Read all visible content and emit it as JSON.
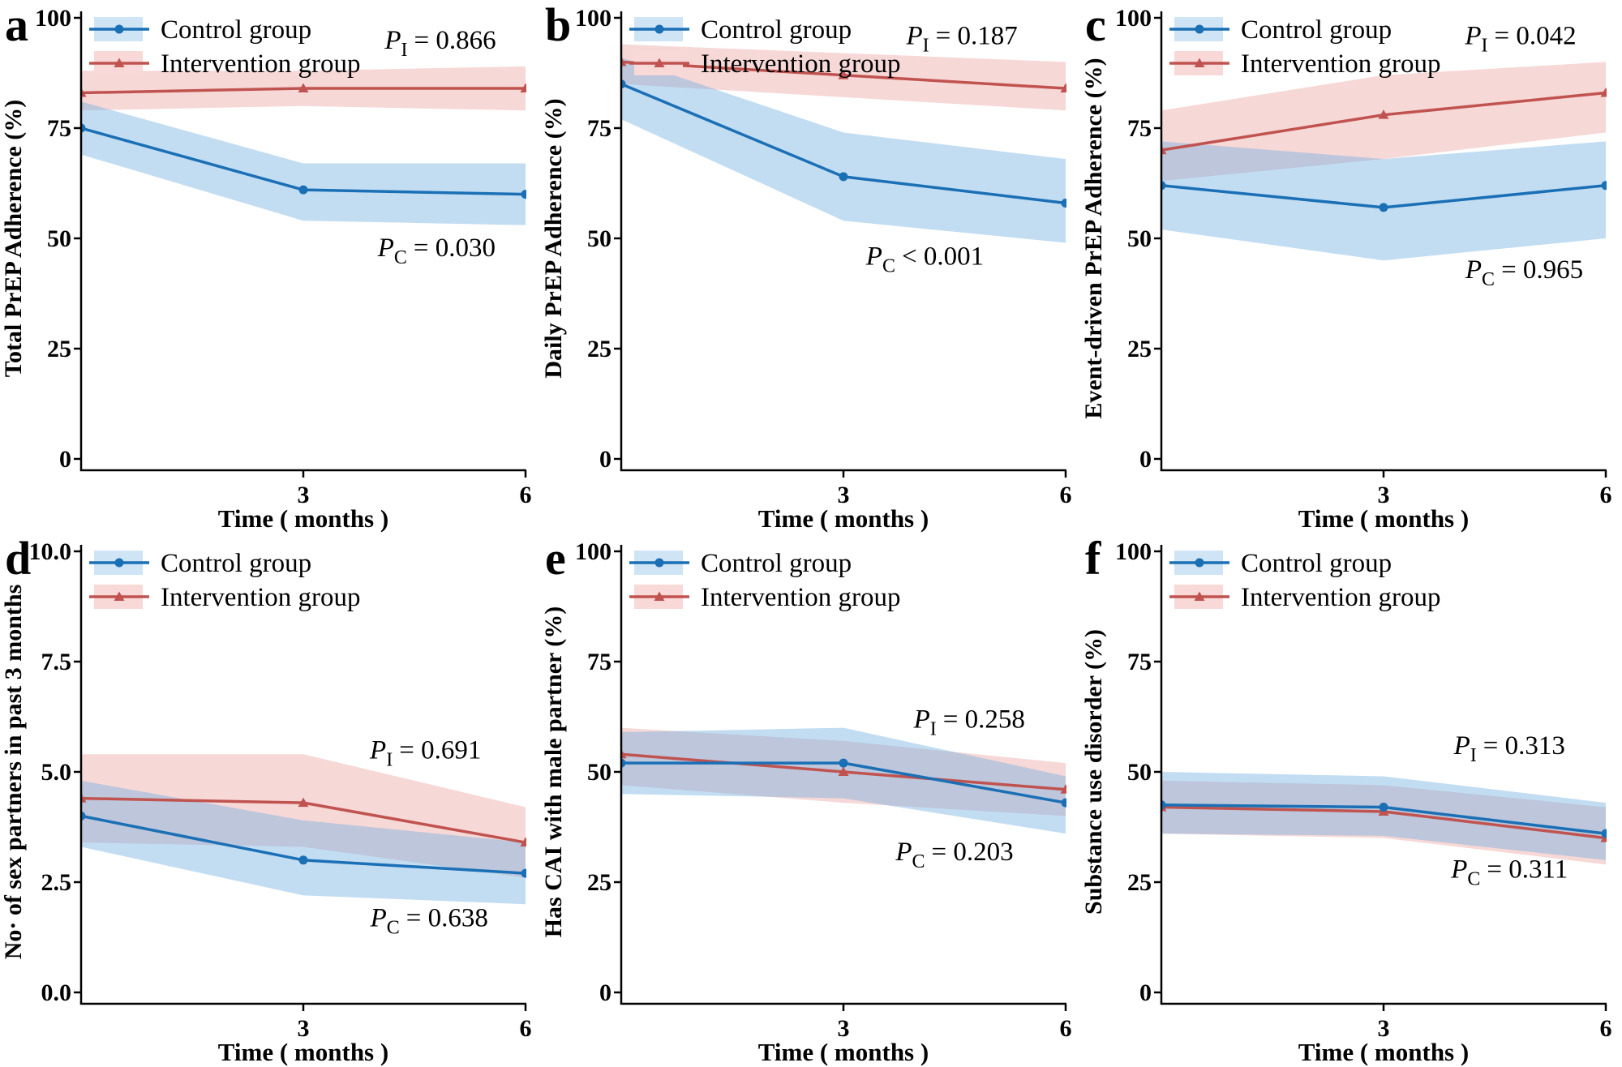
{
  "figure": {
    "x_axis_label": "Time ( months )",
    "legend_position": "top-left",
    "grid": false,
    "legend_items": [
      {
        "name": "Control group",
        "role": "control",
        "marker": "circle"
      },
      {
        "name": "Intervention group",
        "role": "intervention",
        "marker": "triangle"
      }
    ],
    "colors": {
      "control_line": "#1a6fb5",
      "control_fill": "#cfe4f5",
      "control_fill_alpha": "rgba(110,175,225,0.42)",
      "intervention_line": "#c0534f",
      "intervention_fill": "#f8d9d8",
      "intervention_fill_alpha": "rgba(228,140,138,0.34)",
      "axis": "#000000",
      "text": "#000000"
    }
  },
  "chart_data": [
    {
      "type": "line",
      "panel_label": "a",
      "ylabel": "Total PrEP Adherence (%)",
      "xlabel": "Time ( months )",
      "ylim": [
        0,
        100
      ],
      "yticks": [
        {
          "v": 0,
          "label": "0"
        },
        {
          "v": 25,
          "label": "25"
        },
        {
          "v": 50,
          "label": "50"
        },
        {
          "v": 75,
          "label": "75"
        },
        {
          "v": 100,
          "label": "100"
        }
      ],
      "x": [
        0,
        3,
        6
      ],
      "xticks": [
        {
          "v": 3,
          "label": "3"
        },
        {
          "v": 6,
          "label": "6"
        }
      ],
      "series": [
        {
          "name": "Control group",
          "role": "control",
          "values": [
            75,
            61,
            60
          ],
          "ci_low": [
            69,
            54,
            53
          ],
          "ci_high": [
            81,
            67,
            67
          ]
        },
        {
          "name": "Intervention group",
          "role": "intervention",
          "values": [
            83,
            84,
            84
          ],
          "ci_low": [
            79,
            80,
            79
          ],
          "ci_high": [
            88,
            88,
            89
          ]
        }
      ],
      "annotations": [
        {
          "p": "P",
          "sub": "I",
          "rest": "= 0.866",
          "x": 4.85,
          "y": 93
        },
        {
          "p": "P",
          "sub": "C",
          "rest": "= 0.030",
          "x": 4.8,
          "y": 46
        }
      ]
    },
    {
      "type": "line",
      "panel_label": "b",
      "ylabel": "Daily PrEP Adherence (%)",
      "xlabel": "Time ( months )",
      "ylim": [
        0,
        100
      ],
      "yticks": [
        {
          "v": 0,
          "label": "0"
        },
        {
          "v": 25,
          "label": "25"
        },
        {
          "v": 50,
          "label": "50"
        },
        {
          "v": 75,
          "label": "75"
        },
        {
          "v": 100,
          "label": "100"
        }
      ],
      "x": [
        0,
        3,
        6
      ],
      "xticks": [
        {
          "v": 3,
          "label": "3"
        },
        {
          "v": 6,
          "label": "6"
        }
      ],
      "series": [
        {
          "name": "Control group",
          "role": "control",
          "values": [
            85,
            64,
            58
          ],
          "ci_low": [
            77,
            54,
            49
          ],
          "ci_high": [
            91,
            74,
            68
          ]
        },
        {
          "name": "Intervention group",
          "role": "intervention",
          "values": [
            90,
            87,
            84
          ],
          "ci_low": [
            85,
            82,
            79
          ],
          "ci_high": [
            94,
            92,
            90
          ]
        }
      ],
      "annotations": [
        {
          "p": "P",
          "sub": "I",
          "rest": "= 0.187",
          "x": 4.6,
          "y": 94
        },
        {
          "p": "P",
          "sub": "C",
          "rest": "< 0.001",
          "x": 4.1,
          "y": 44
        }
      ]
    },
    {
      "type": "line",
      "panel_label": "c",
      "ylabel": "Event-driven PrEP Adherence (%)",
      "xlabel": "Time ( months )",
      "ylim": [
        0,
        100
      ],
      "yticks": [
        {
          "v": 0,
          "label": "0"
        },
        {
          "v": 25,
          "label": "25"
        },
        {
          "v": 50,
          "label": "50"
        },
        {
          "v": 75,
          "label": "75"
        },
        {
          "v": 100,
          "label": "100"
        }
      ],
      "x": [
        0,
        3,
        6
      ],
      "xticks": [
        {
          "v": 3,
          "label": "3"
        },
        {
          "v": 6,
          "label": "6"
        }
      ],
      "series": [
        {
          "name": "Control group",
          "role": "control",
          "values": [
            62,
            57,
            62
          ],
          "ci_low": [
            52,
            45,
            50
          ],
          "ci_high": [
            72,
            68,
            72
          ]
        },
        {
          "name": "Intervention group",
          "role": "intervention",
          "values": [
            70,
            78,
            83
          ],
          "ci_low": [
            63,
            68,
            74
          ],
          "ci_high": [
            79,
            87,
            90
          ]
        }
      ],
      "annotations": [
        {
          "p": "P",
          "sub": "I",
          "rest": "= 0.042",
          "x": 4.85,
          "y": 94
        },
        {
          "p": "P",
          "sub": "C",
          "rest": "= 0.965",
          "x": 4.9,
          "y": 41
        }
      ]
    },
    {
      "type": "line",
      "panel_label": "d",
      "ylabel": "No· of sex partners in past 3 months",
      "xlabel": "Time ( months )",
      "ylim": [
        0,
        10
      ],
      "yticks": [
        {
          "v": 0,
          "label": "0.0"
        },
        {
          "v": 2.5,
          "label": "2.5"
        },
        {
          "v": 5,
          "label": "5.0"
        },
        {
          "v": 7.5,
          "label": "7.5"
        },
        {
          "v": 10,
          "label": "10.0"
        }
      ],
      "x": [
        0,
        3,
        6
      ],
      "xticks": [
        {
          "v": 3,
          "label": "3"
        },
        {
          "v": 6,
          "label": "6"
        }
      ],
      "series": [
        {
          "name": "Control group",
          "role": "control",
          "values": [
            4.0,
            3.0,
            2.7
          ],
          "ci_low": [
            3.3,
            2.2,
            2.0
          ],
          "ci_high": [
            4.8,
            3.9,
            3.4
          ]
        },
        {
          "name": "Intervention group",
          "role": "intervention",
          "values": [
            4.4,
            4.3,
            3.4
          ],
          "ci_low": [
            3.4,
            3.3,
            2.6
          ],
          "ci_high": [
            5.4,
            5.4,
            4.2
          ]
        }
      ],
      "annotations": [
        {
          "p": "P",
          "sub": "I",
          "rest": "= 0.691",
          "x": 4.65,
          "y": 5.3
        },
        {
          "p": "P",
          "sub": "C",
          "rest": "= 0.638",
          "x": 4.7,
          "y": 1.5
        }
      ]
    },
    {
      "type": "line",
      "panel_label": "e",
      "ylabel": "Has CAI with male partner (%)",
      "xlabel": "Time ( months )",
      "ylim": [
        0,
        100
      ],
      "yticks": [
        {
          "v": 0,
          "label": "0"
        },
        {
          "v": 25,
          "label": "25"
        },
        {
          "v": 50,
          "label": "50"
        },
        {
          "v": 75,
          "label": "75"
        },
        {
          "v": 100,
          "label": "100"
        }
      ],
      "x": [
        0,
        3,
        6
      ],
      "xticks": [
        {
          "v": 3,
          "label": "3"
        },
        {
          "v": 6,
          "label": "6"
        }
      ],
      "series": [
        {
          "name": "Control group",
          "role": "control",
          "values": [
            52,
            52,
            43
          ],
          "ci_low": [
            45,
            44,
            36
          ],
          "ci_high": [
            59,
            60,
            49
          ]
        },
        {
          "name": "Intervention group",
          "role": "intervention",
          "values": [
            54,
            50,
            46
          ],
          "ci_low": [
            47,
            43,
            40
          ],
          "ci_high": [
            60,
            57,
            52
          ]
        }
      ],
      "annotations": [
        {
          "p": "P",
          "sub": "I",
          "rest": "= 0.258",
          "x": 4.7,
          "y": 60
        },
        {
          "p": "P",
          "sub": "C",
          "rest": "= 0.203",
          "x": 4.5,
          "y": 30
        }
      ]
    },
    {
      "type": "line",
      "panel_label": "f",
      "ylabel": "Substance use disorder (%)",
      "xlabel": "Time ( months )",
      "ylim": [
        0,
        100
      ],
      "yticks": [
        {
          "v": 0,
          "label": "0"
        },
        {
          "v": 25,
          "label": "25"
        },
        {
          "v": 50,
          "label": "50"
        },
        {
          "v": 75,
          "label": "75"
        },
        {
          "v": 100,
          "label": "100"
        }
      ],
      "x": [
        0,
        3,
        6
      ],
      "xticks": [
        {
          "v": 3,
          "label": "3"
        },
        {
          "v": 6,
          "label": "6"
        }
      ],
      "series": [
        {
          "name": "Control group",
          "role": "control",
          "values": [
            42.5,
            42,
            36
          ],
          "ci_low": [
            36,
            35.5,
            30
          ],
          "ci_high": [
            50,
            49,
            43
          ]
        },
        {
          "name": "Intervention group",
          "role": "intervention",
          "values": [
            42,
            41,
            35
          ],
          "ci_low": [
            36,
            35,
            29
          ],
          "ci_high": [
            48,
            47,
            42
          ]
        }
      ],
      "annotations": [
        {
          "p": "P",
          "sub": "I",
          "rest": "= 0.313",
          "x": 4.7,
          "y": 54
        },
        {
          "p": "P",
          "sub": "C",
          "rest": "= 0.311",
          "x": 4.7,
          "y": 26
        }
      ]
    }
  ]
}
